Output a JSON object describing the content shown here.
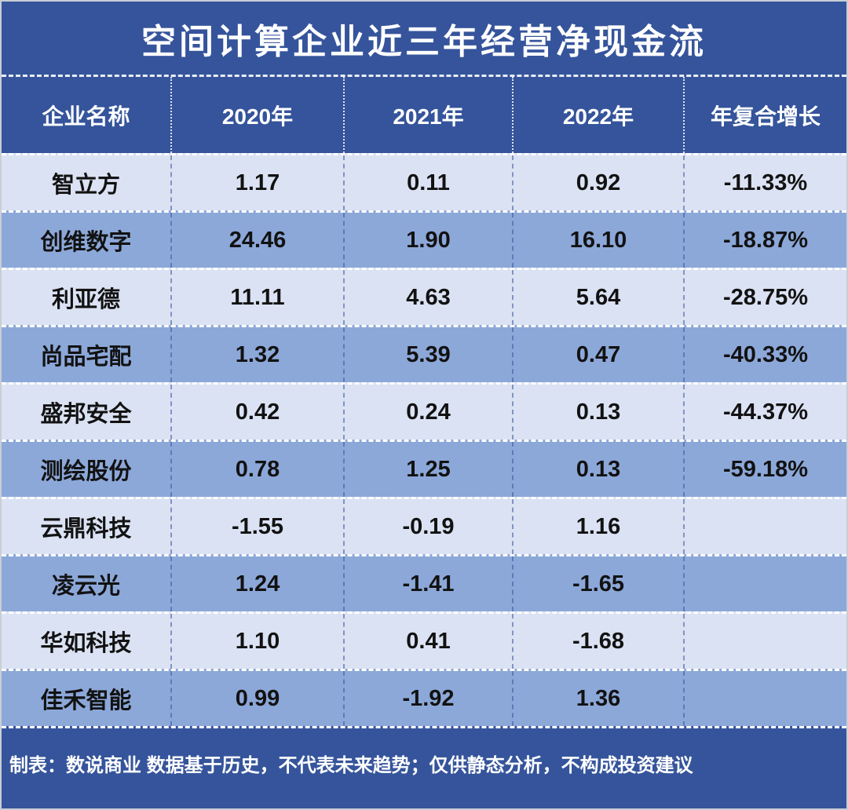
{
  "page": {
    "title": "空间计算企业近三年经营净现金流",
    "footnote": "制表：数说商业 数据基于历史，不代表未来趋势；仅供静态分析，不构成投资建议"
  },
  "colors": {
    "banner_bg": "#35549B",
    "row_light_bg": "#DBE2F3",
    "row_dark_bg": "#8CA8D9",
    "header_text": "#FFFFFF",
    "body_text": "#121212",
    "outer_border": "#C9CED6"
  },
  "chart_data": {
    "type": "table",
    "title": "空间计算企业近三年经营净现金流",
    "columns": [
      "企业名称",
      "2020年",
      "2021年",
      "2022年",
      "年复合增长"
    ],
    "rows": [
      [
        "智立方",
        "1.17",
        "0.11",
        "0.92",
        "-11.33%"
      ],
      [
        "创维数字",
        "24.46",
        "1.90",
        "16.10",
        "-18.87%"
      ],
      [
        "利亚德",
        "11.11",
        "4.63",
        "5.64",
        "-28.75%"
      ],
      [
        "尚品宅配",
        "1.32",
        "5.39",
        "0.47",
        "-40.33%"
      ],
      [
        "盛邦安全",
        "0.42",
        "0.24",
        "0.13",
        "-44.37%"
      ],
      [
        "测绘股份",
        "0.78",
        "1.25",
        "0.13",
        "-59.18%"
      ],
      [
        "云鼎科技",
        "-1.55",
        "-0.19",
        "1.16",
        ""
      ],
      [
        "凌云光",
        "1.24",
        "-1.41",
        "-1.65",
        ""
      ],
      [
        "华如科技",
        "1.10",
        "0.41",
        "-1.68",
        ""
      ],
      [
        "佳禾智能",
        "0.99",
        "-1.92",
        "1.36",
        ""
      ]
    ],
    "footnote": "制表：数说商业 数据基于历史，不代表未来趋势；仅供静态分析，不构成投资建议",
    "layout": {
      "row_shading": "alternating, first data row light",
      "grid": "dashed white horizontal dividers, dashed blue vertical dividers",
      "legend_position": "none"
    }
  }
}
